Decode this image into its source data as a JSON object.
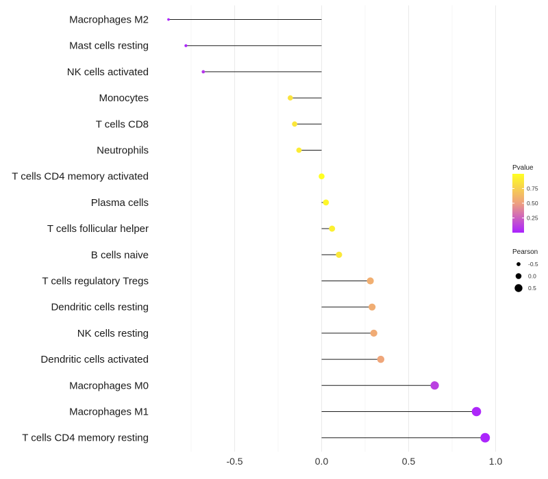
{
  "chart_data": {
    "type": "lollipop",
    "categories": [
      "Macrophages M2",
      "Mast cells resting",
      "NK cells activated",
      "Monocytes",
      "T cells CD8",
      "Neutrophils",
      "T cells CD4 memory activated",
      "Plasma cells",
      "T cells follicular helper",
      "B cells naive",
      "T cells regulatory  Tregs ",
      "Dendritic cells resting",
      "NK cells resting",
      "Dendritic cells activated",
      "Macrophages M0",
      "Macrophages M1",
      "T cells CD4 memory resting"
    ],
    "pearson": [
      -0.88,
      -0.78,
      -0.68,
      -0.18,
      -0.155,
      -0.13,
      0.0,
      0.025,
      0.06,
      0.1,
      0.28,
      0.29,
      0.3,
      0.34,
      0.65,
      0.89,
      0.94
    ],
    "pvalue": [
      0.01,
      0.02,
      0.08,
      0.85,
      0.87,
      0.9,
      1.0,
      0.96,
      0.92,
      0.88,
      0.58,
      0.57,
      0.56,
      0.53,
      0.12,
      0.02,
      0.01
    ],
    "x_ticks": [
      -0.5,
      0.0,
      0.5,
      1.0
    ],
    "x_tick_labels": [
      "-0.5",
      "0.0",
      "0.5",
      "1.0"
    ],
    "xlim": [
      -0.98,
      1.02
    ],
    "xlabel": "",
    "ylabel": "",
    "title": "",
    "legend": {
      "color": {
        "title": "Pvalue",
        "ticks": [
          0.75,
          0.5,
          0.25
        ],
        "tick_labels": [
          "0.75",
          "0.50",
          "0.25"
        ],
        "low_color": "#aa22ff",
        "mid_color": "#eea080",
        "high_color": "#ffff22"
      },
      "size": {
        "title": "Pearson",
        "values": [
          -0.5,
          0.0,
          0.5
        ],
        "labels": [
          "-0.5",
          "0.0",
          "0.5"
        ]
      },
      "position": "right"
    }
  }
}
